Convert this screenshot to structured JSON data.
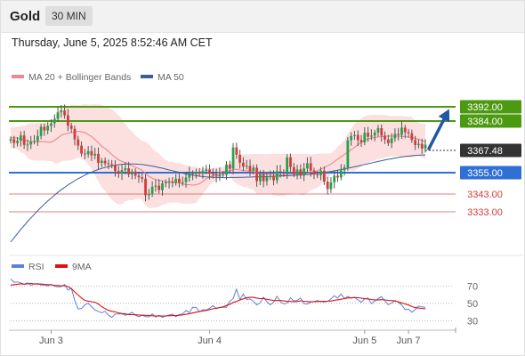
{
  "header": {
    "symbol": "Gold",
    "timeframe": "30 MIN"
  },
  "datetime": "Thursday, June 5, 2025 8:52:46 AM CET",
  "colors": {
    "bull": "#24a34a",
    "bear": "#d63b3b",
    "wick": "#555555",
    "bollinger_fill": "#fbd6d6",
    "ma20": "#f0858a",
    "ma50": "#3a5d9c",
    "resistance": "#4c9a12",
    "support": "#2f6fd6",
    "level_red": "#e06060",
    "arrow": "#2256a8",
    "rsi": "#5a82d8",
    "rsi_ma": "#e01010",
    "current_bg": "#333333"
  },
  "chart_data": [
    {
      "type": "candlestick",
      "title": "",
      "legend": [
        {
          "name": "MA 20 + Bollinger Bands",
          "color": "#f0858a"
        },
        {
          "name": "MA 50",
          "color": "#3a5d9c"
        }
      ],
      "x_labels": [
        "Jun 3",
        "Jun 4",
        "Jun 5",
        "Jun 7"
      ],
      "x_label_index": [
        12,
        59,
        105,
        118
      ],
      "bars_total": 124,
      "ylim": [
        3313,
        3404
      ],
      "current_price": "3367.48",
      "current_price_value": 3367.48,
      "levels": [
        {
          "label": "3392.00",
          "value": 3392,
          "kind": "resistance"
        },
        {
          "label": "3384.00",
          "value": 3384,
          "kind": "resistance"
        },
        {
          "label": "3355.00",
          "value": 3355,
          "kind": "support"
        },
        {
          "label": "3343.00",
          "value": 3343,
          "kind": "minor"
        },
        {
          "label": "3333.00",
          "value": 3333,
          "kind": "minor"
        }
      ],
      "projection": {
        "from": 3367.48,
        "to": 3392
      },
      "closes": [
        3373.8,
        3371.6,
        3372.9,
        3375.9,
        3370.6,
        3370.8,
        3372.5,
        3372.8,
        3375.6,
        3380.8,
        3378.7,
        3381.3,
        3382.7,
        3385.2,
        3388.9,
        3389.9,
        3387.2,
        3381.4,
        3379.6,
        3373.7,
        3370.2,
        3365.7,
        3365.3,
        3367.1,
        3364.7,
        3365.6,
        3360.5,
        3361.7,
        3360.2,
        3359.8,
        3359.4,
        3355.9,
        3354.3,
        3356.4,
        3357.5,
        3354.0,
        3355.6,
        3353.3,
        3352.4,
        3351.6,
        3342.3,
        3343.0,
        3347.1,
        3347.7,
        3345.2,
        3349.0,
        3349.5,
        3350.1,
        3349.3,
        3351.6,
        3349.5,
        3349.7,
        3352.2,
        3354.7,
        3354.2,
        3355.4,
        3354.4,
        3356.0,
        3356.8,
        3354.3,
        3353.9,
        3352.9,
        3354.2,
        3353.9,
        3359.6,
        3357.2,
        3369.2,
        3365.0,
        3360.6,
        3358.4,
        3358.8,
        3355.9,
        3357.8,
        3350.2,
        3354.2,
        3350.2,
        3352.6,
        3353.3,
        3350.7,
        3355.8,
        3355.3,
        3354.9,
        3363.6,
        3358.1,
        3354.0,
        3356.8,
        3353.4,
        3357.4,
        3360.3,
        3356.2,
        3353.9,
        3353.5,
        3356.1,
        3350.0,
        3345.8,
        3349.6,
        3353.3,
        3352.3,
        3356.2,
        3358.0,
        3373.2,
        3375.6,
        3376.2,
        3373.3,
        3372.0,
        3377.4,
        3375.2,
        3375.8,
        3377.5,
        3380.0,
        3375.8,
        3373.6,
        3371.6,
        3374.3,
        3376.8,
        3376.2,
        3380.3,
        3377.7,
        3377.1,
        3373.3,
        3370.5,
        3371.2,
        3368.6,
        3370.7
      ],
      "ma20": [
        3374.6,
        3374.7,
        3374.4,
        3373.8,
        3373.5,
        3372.8,
        3372.4,
        3372.4,
        3372.3,
        3372.4,
        3372.4,
        3372.1,
        3372.2,
        3373.1,
        3374.5,
        3376.0,
        3376.7,
        3377.1,
        3377.5,
        3377.8,
        3378.2,
        3377.9,
        3377.6,
        3376.4,
        3375.3,
        3373.6,
        3371.8,
        3369.8,
        3368.6,
        3366.9,
        3365.2,
        3363.7,
        3362.2,
        3361.3,
        3360.6,
        3359.8,
        3358.8,
        3358.0,
        3357.3,
        3356.3,
        3354.5,
        3353.0,
        3351.9,
        3351.1,
        3350.8,
        3350.3,
        3349.8,
        3349.6,
        3349.6,
        3349.4,
        3349.2,
        3348.7,
        3348.3,
        3348.2,
        3348.0,
        3348.2,
        3348.9,
        3350.1,
        3351.6,
        3352.6,
        3353.3,
        3354.2,
        3355.2,
        3355.6,
        3356.0,
        3355.9,
        3356.7,
        3356.9,
        3356.5,
        3356.2,
        3356.1,
        3355.7,
        3355.4,
        3354.4,
        3354.3,
        3354.3,
        3354.3,
        3354.4,
        3354.0,
        3353.8,
        3353.7,
        3353.7,
        3354.1,
        3354.2,
        3354.4,
        3354.4,
        3354.1,
        3353.9,
        3354.6,
        3355.1,
        3355.6,
        3356.1,
        3357.0,
        3357.8,
        3358.8,
        3359.8,
        3361.2,
        3362.6,
        3363.9,
        3365.2,
        3366.6,
        3368.0,
        3369.2,
        3370.7,
        3371.9,
        3373.3,
        3373.9,
        3374.4,
        3374.7,
        3375.1,
        3375.2,
        3375.4,
        3375.6,
        3375.5,
        3375.5,
        3375.5,
        3375.4,
        3375.2,
        3375.0,
        3374.9,
        3374.3,
        3373.8,
        3373.0,
        3372.6
      ],
      "bb_upper": [
        3380.6,
        3380.6,
        3380.9,
        3381.2,
        3381.4,
        3382.2,
        3382.8,
        3382.8,
        3382.9,
        3383.0,
        3383.0,
        3382.7,
        3382.9,
        3385.8,
        3389.0,
        3390.6,
        3391.8,
        3392.4,
        3393.1,
        3393.1,
        3392.9,
        3393.1,
        3393.4,
        3393.2,
        3393.4,
        3393.4,
        3393.4,
        3393.0,
        3392.5,
        3391.5,
        3390.7,
        3389.1,
        3387.3,
        3385.3,
        3382.2,
        3379.9,
        3378.2,
        3375.8,
        3374.3,
        3373.0,
        3372.5,
        3371.0,
        3368.7,
        3366.9,
        3365.7,
        3363.7,
        3362.1,
        3361.1,
        3361.1,
        3360.5,
        3360.3,
        3359.9,
        3359.1,
        3358.9,
        3358.4,
        3358.4,
        3357.4,
        3357.2,
        3357.7,
        3357.4,
        3357.3,
        3357.8,
        3358.3,
        3358.3,
        3358.9,
        3358.8,
        3363.1,
        3364.8,
        3365.2,
        3365.3,
        3365.4,
        3365.4,
        3365.5,
        3365.5,
        3365.5,
        3365.5,
        3365.4,
        3365.5,
        3365.7,
        3365.6,
        3365.5,
        3365.5,
        3365.6,
        3365.6,
        3365.5,
        3365.6,
        3365.5,
        3365.6,
        3365.5,
        3365.2,
        3365.5,
        3365.6,
        3365.7,
        3365.8,
        3365.8,
        3365.8,
        3367.5,
        3369.6,
        3371.4,
        3373.5,
        3376.8,
        3379.8,
        3382.3,
        3384.1,
        3385.3,
        3386.7,
        3387.3,
        3387.5,
        3387.5,
        3387.5,
        3387.5,
        3387.4,
        3387.2,
        3386.9,
        3386.9,
        3386.9,
        3386.9,
        3386.7,
        3386.5,
        3386.3,
        3384.4,
        3383.1,
        3382.4,
        3382.6
      ],
      "bb_lower": [
        3368.6,
        3368.8,
        3368.0,
        3366.4,
        3365.6,
        3363.4,
        3362.0,
        3362.0,
        3361.7,
        3361.8,
        3361.8,
        3361.5,
        3361.5,
        3360.4,
        3360.0,
        3361.4,
        3361.7,
        3361.8,
        3361.9,
        3362.5,
        3363.5,
        3362.7,
        3361.8,
        3359.6,
        3357.1,
        3353.7,
        3350.2,
        3346.6,
        3344.8,
        3342.3,
        3339.7,
        3338.3,
        3337.1,
        3337.3,
        3338.9,
        3339.7,
        3339.4,
        3340.1,
        3340.4,
        3339.7,
        3336.5,
        3335.0,
        3335.2,
        3335.3,
        3335.9,
        3336.9,
        3337.4,
        3338.1,
        3338.1,
        3338.3,
        3338.1,
        3337.6,
        3337.5,
        3337.5,
        3337.6,
        3338.0,
        3340.4,
        3343.0,
        3345.4,
        3347.9,
        3349.3,
        3350.6,
        3352.1,
        3352.9,
        3353.1,
        3353.0,
        3350.4,
        3348.9,
        3347.8,
        3347.0,
        3346.8,
        3346.0,
        3345.3,
        3343.2,
        3343.1,
        3343.1,
        3343.2,
        3343.3,
        3342.3,
        3342.0,
        3341.9,
        3341.9,
        3342.6,
        3342.8,
        3343.3,
        3343.3,
        3342.6,
        3342.2,
        3343.6,
        3345.0,
        3345.8,
        3346.6,
        3348.3,
        3349.8,
        3351.8,
        3353.8,
        3354.9,
        3355.6,
        3356.4,
        3356.9,
        3356.4,
        3356.2,
        3356.1,
        3357.3,
        3358.5,
        3359.9,
        3360.5,
        3361.3,
        3361.9,
        3362.7,
        3362.9,
        3363.4,
        3364.0,
        3364.1,
        3364.1,
        3364.1,
        3363.9,
        3363.7,
        3363.5,
        3363.5,
        3364.2,
        3364.5,
        3363.6,
        3362.6
      ],
      "ma50": [
        3316.0,
        3318.4,
        3320.8,
        3323.1,
        3325.3,
        3327.5,
        3329.6,
        3331.6,
        3333.6,
        3335.5,
        3337.3,
        3339.1,
        3340.7,
        3342.4,
        3343.9,
        3345.4,
        3346.7,
        3348.1,
        3349.3,
        3350.5,
        3351.6,
        3352.6,
        3353.6,
        3354.5,
        3355.3,
        3356.1,
        3356.8,
        3357.4,
        3357.9,
        3358.4,
        3358.8,
        3359.2,
        3359.5,
        3359.7,
        3359.8,
        3359.9,
        3359.9,
        3359.9,
        3359.7,
        3359.6,
        3359.3,
        3359.0,
        3358.7,
        3358.3,
        3357.9,
        3357.5,
        3357.0,
        3356.5,
        3356.1,
        3355.6,
        3355.2,
        3354.7,
        3354.3,
        3353.9,
        3353.6,
        3353.3,
        3353.0,
        3352.8,
        3352.6,
        3352.5,
        3352.4,
        3352.3,
        3352.3,
        3352.2,
        3352.2,
        3352.3,
        3352.3,
        3352.3,
        3352.4,
        3352.4,
        3352.5,
        3352.5,
        3352.6,
        3352.6,
        3352.7,
        3352.7,
        3352.8,
        3352.9,
        3352.9,
        3353.0,
        3353.1,
        3353.2,
        3353.3,
        3353.4,
        3353.5,
        3353.6,
        3353.7,
        3353.9,
        3354.0,
        3354.2,
        3354.4,
        3354.6,
        3354.9,
        3355.1,
        3355.4,
        3355.7,
        3356.0,
        3356.4,
        3356.7,
        3357.1,
        3357.5,
        3357.9,
        3358.3,
        3358.7,
        3359.1,
        3359.6,
        3360.0,
        3360.4,
        3360.9,
        3361.3,
        3361.7,
        3362.1,
        3362.5,
        3362.8,
        3363.2,
        3363.5,
        3363.8,
        3364.1,
        3364.3,
        3364.5,
        3364.7,
        3364.8,
        3364.9,
        3365.0
      ]
    },
    {
      "type": "line",
      "title": "",
      "legend": [
        {
          "name": "RSI",
          "color": "#5a82d8"
        },
        {
          "name": "9MA",
          "color": "#e01010"
        }
      ],
      "ylim": [
        22,
        84
      ],
      "ticks": [
        70,
        50,
        30
      ],
      "rsi": [
        78.3,
        74.5,
        75.0,
        73.9,
        72.2,
        73.9,
        71.0,
        72.6,
        73.2,
        71.4,
        71.5,
        70.3,
        72.2,
        69.8,
        69.2,
        69.4,
        71.9,
        65.5,
        67.8,
        53.2,
        43.6,
        44.1,
        48.1,
        50.3,
        46.2,
        42.6,
        40.7,
        39.1,
        40.9,
        36.3,
        33.7,
        37.6,
        37.7,
        38.0,
        36.3,
        37.4,
        39.7,
        36.3,
        34.4,
        36.3,
        34.6,
        34.3,
        37.9,
        34.1,
        36.3,
        33.8,
        35.4,
        36.5,
        37.5,
        34.5,
        37.2,
        37.8,
        41.7,
        39.5,
        45.5,
        45.2,
        40.2,
        42.8,
        42.3,
        44.2,
        47.4,
        43.9,
        45.4,
        45.7,
        45.6,
        52.6,
        55.5,
        66.5,
        54.4,
        60.8,
        54.5,
        55.2,
        52.4,
        48.2,
        50.7,
        57.2,
        52.0,
        48.4,
        51.5,
        58.2,
        52.0,
        49.4,
        50.3,
        56.6,
        52.8,
        53.5,
        56.1,
        49.8,
        49.3,
        51.6,
        52.2,
        53.4,
        52.1,
        51.7,
        52.4,
        55.2,
        58.9,
        56.1,
        60.9,
        55.7,
        58.3,
        56.0,
        57.1,
        54.1,
        51.2,
        55.4,
        56.2,
        49.8,
        52.8,
        55.4,
        58.0,
        53.0,
        48.5,
        50.4,
        53.4,
        51.3,
        48.1,
        42.9,
        43.4,
        39.8,
        42.8,
        47.0,
        46.0,
        45.6
      ],
      "rsi_ma": [
        71.2,
        71.8,
        72.2,
        72.8,
        72.2,
        72.8,
        73.2,
        72.5,
        72.4,
        72.5,
        72.0,
        71.8,
        71.6,
        70.9,
        70.8,
        70.4,
        70.6,
        69.5,
        67.2,
        63.3,
        59.7,
        56.3,
        53.5,
        52.6,
        52.0,
        51.3,
        49.3,
        46.3,
        43.9,
        41.9,
        40.8,
        40.2,
        38.9,
        38.2,
        37.8,
        37.1,
        37.0,
        36.9,
        36.6,
        36.4,
        36.2,
        35.9,
        35.6,
        35.3,
        35.3,
        35.3,
        35.4,
        35.6,
        35.9,
        35.7,
        36.3,
        36.7,
        37.4,
        38.1,
        38.9,
        39.8,
        40.6,
        41.1,
        41.8,
        42.9,
        43.7,
        44.4,
        45.3,
        46.0,
        47.6,
        48.9,
        51.1,
        52.3,
        54.0,
        55.3,
        56.5,
        57.0,
        57.0,
        56.2,
        55.6,
        55.7,
        54.8,
        54.0,
        53.4,
        53.2,
        53.5,
        52.9,
        52.4,
        52.3,
        52.0,
        52.2,
        53.0,
        52.5,
        52.2,
        52.0,
        52.1,
        52.2,
        52.4,
        52.5,
        52.5,
        52.8,
        53.6,
        54.2,
        54.9,
        55.6,
        56.3,
        56.5,
        56.8,
        56.6,
        56.1,
        55.5,
        55.1,
        54.5,
        54.1,
        53.9,
        54.3,
        54.0,
        53.5,
        53.3,
        52.8,
        51.9,
        50.6,
        49.4,
        48.1,
        46.4,
        45.1,
        44.6,
        44.2,
        43.8
      ]
    }
  ]
}
